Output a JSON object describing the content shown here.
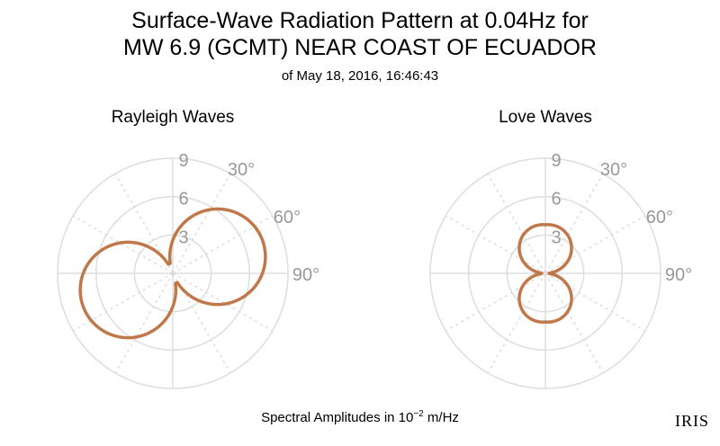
{
  "header": {
    "title_line1": "Surface-Wave Radiation Pattern at 0.04Hz for",
    "title_line2": "MW 6.9 (GCMT) NEAR COAST OF ECUADOR",
    "subtitle": "of May 18, 2016, 16:46:43"
  },
  "footer": {
    "label_prefix": "Spectral Amplitudes in 10",
    "label_exp": "−2",
    "label_suffix": " m/Hz",
    "logo": "IRIS"
  },
  "colors": {
    "pattern": "#c0784a",
    "grid": "#dddddd",
    "tick_text": "#999999"
  },
  "chart_data": [
    {
      "type": "polar-line",
      "title": "Rayleigh Waves",
      "radial_ticks": [
        "3",
        "6",
        "9"
      ],
      "radial_max": 9,
      "angle_ticks": [
        "30°",
        "60°",
        "90°"
      ],
      "pattern": {
        "a": 7.0,
        "b": 2.6,
        "c": 0.0,
        "d": -1.0,
        "rmin": 0.8
      }
    },
    {
      "type": "polar-line",
      "title": "Love Waves",
      "radial_ticks": [
        "3",
        "6",
        "9"
      ],
      "radial_max": 9,
      "angle_ticks": [
        "30°",
        "60°",
        "90°"
      ],
      "pattern": {
        "a": 0.4,
        "b": 0.0,
        "c": 3.8,
        "d": 1.0,
        "rmin": 0.3
      }
    }
  ]
}
